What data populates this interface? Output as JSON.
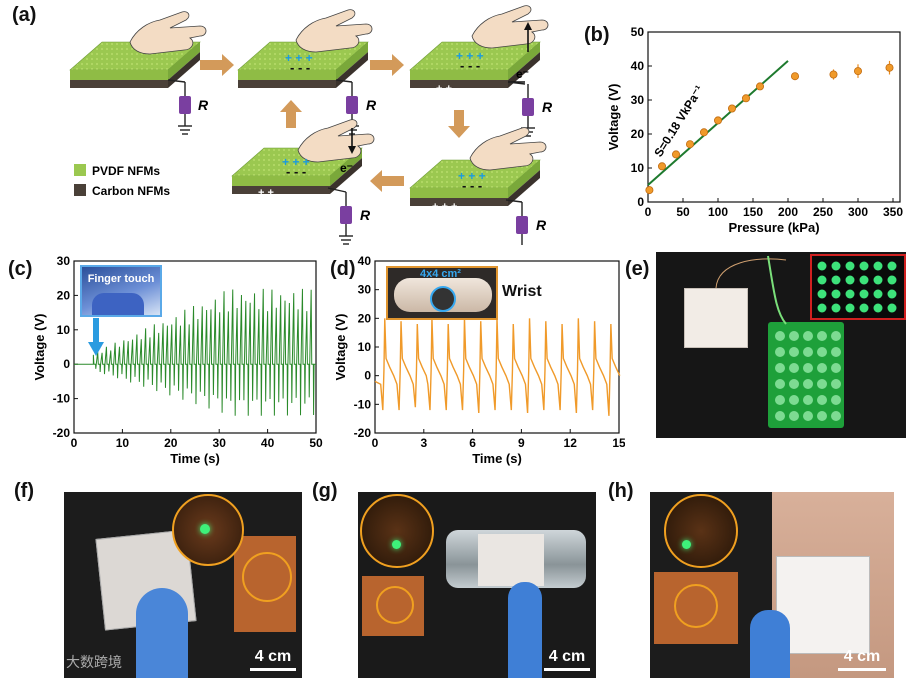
{
  "panels": {
    "a": "(a)",
    "b": "(b)",
    "c": "(c)",
    "d": "(d)",
    "e": "(e)",
    "f": "(f)",
    "g": "(g)",
    "h": "(h)"
  },
  "schematic": {
    "resistor_label": "R",
    "electron_label": "e⁻",
    "legend": [
      {
        "label": "PVDF NFMs",
        "color": "#9bc850"
      },
      {
        "label": "Carbon NFMs",
        "color": "#4a4038"
      }
    ]
  },
  "insets": {
    "finger_touch": "Finger touch",
    "area": "4x4 cm²",
    "wrist": "Wrist"
  },
  "scale_bar": "4 cm",
  "watermark": "大数跨境",
  "chart_data": [
    {
      "id": "b",
      "type": "scatter",
      "xlabel": "Pressure (kPa)",
      "ylabel": "Voltage (V)",
      "xlim": [
        0,
        360
      ],
      "ylim": [
        0,
        50
      ],
      "xticks": [
        0,
        50,
        100,
        150,
        200,
        250,
        300,
        350
      ],
      "yticks": [
        0,
        10,
        20,
        30,
        40,
        50
      ],
      "x": [
        2,
        20,
        40,
        60,
        80,
        100,
        120,
        140,
        160,
        210,
        265,
        300,
        345
      ],
      "y": [
        3.5,
        10.5,
        14,
        17,
        20.5,
        24,
        27.5,
        30.5,
        34,
        37,
        37.5,
        38.5,
        39.5
      ],
      "err": [
        0.8,
        0.8,
        0.8,
        0.8,
        0.8,
        0.8,
        0.8,
        0.8,
        0.8,
        1,
        1.5,
        2,
        2
      ],
      "fit": {
        "x": [
          0,
          200
        ],
        "y": [
          5,
          41.5
        ]
      },
      "annotation": "S=0.18 VkPa⁻¹"
    },
    {
      "id": "c",
      "type": "line",
      "xlabel": "Time (s)",
      "ylabel": "Voltage (V)",
      "xlim": [
        0,
        50
      ],
      "ylim": [
        -20,
        30
      ],
      "xticks": [
        0,
        10,
        20,
        30,
        40,
        50
      ],
      "yticks": [
        -20,
        -10,
        0,
        10,
        20,
        30
      ],
      "pulse_start": 4,
      "pulse_period": 0.9,
      "peak_max": 22,
      "trough_max": -15
    },
    {
      "id": "d",
      "type": "line",
      "xlabel": "Time (s)",
      "ylabel": "Voltage (V)",
      "xlim": [
        0,
        15
      ],
      "ylim": [
        -20,
        40
      ],
      "xticks": [
        0,
        3,
        6,
        9,
        12,
        15
      ],
      "yticks": [
        -20,
        -10,
        0,
        10,
        20,
        30,
        40
      ],
      "peak_times": [
        0.6,
        1.6,
        2.6,
        3.5,
        4.5,
        5.5,
        6.5,
        7.5,
        8.5,
        9.5,
        10.5,
        11.5,
        12.5,
        13.5,
        14.5
      ],
      "peak_values": [
        20,
        19,
        18,
        20,
        18,
        20,
        19,
        20,
        18,
        20,
        19,
        18,
        20,
        19,
        18
      ],
      "trough_values": [
        -12,
        -12,
        -11,
        -12,
        -12,
        -12,
        -13,
        -12,
        -12,
        -13,
        -12,
        -12,
        -13,
        -12,
        -14
      ]
    }
  ]
}
